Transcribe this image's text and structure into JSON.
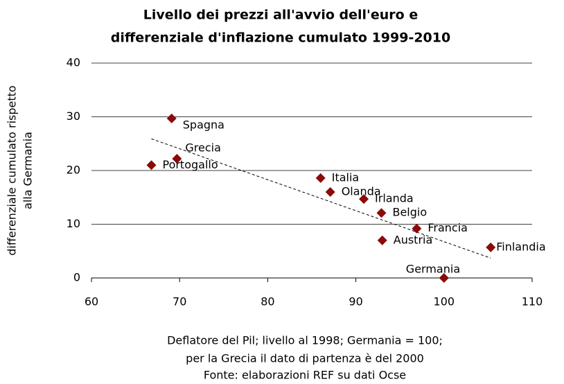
{
  "chart_data": {
    "type": "scatter",
    "title": [
      "Livello dei prezzi all'avvio dell'euro e",
      "differenziale d'inflazione cumulato 1999-2010"
    ],
    "ylabel": [
      "differenziale cumulato rispetto",
      "alla Germania"
    ],
    "caption": [
      "Deflatore del Pil; livello al 1998; Germania = 100;",
      "per la Grecia il dato di partenza è del 2000",
      "Fonte: elaborazioni REF su dati Ocse"
    ],
    "labels": [
      "Spagna",
      "Grecia",
      "Portogallo",
      "Italia",
      "Olanda",
      "Irlanda",
      "Belgio",
      "Francia",
      "Austria",
      "Finlandia",
      "Germania"
    ],
    "x": [
      69.1,
      69.7,
      66.8,
      86.0,
      87.1,
      90.9,
      92.9,
      96.9,
      93.0,
      105.3,
      100
    ],
    "values": [
      29.7,
      22.2,
      21.0,
      18.6,
      16.0,
      14.7,
      12.1,
      9.2,
      7.0,
      5.7,
      0
    ],
    "color": "#8b0a0a",
    "trendline": {
      "x": [
        66.8,
        105.3
      ],
      "y": [
        25.9,
        3.7
      ]
    },
    "xlim": [
      60,
      110
    ],
    "xticks": [
      60,
      70,
      80,
      90,
      100,
      110
    ],
    "ylim": [
      0,
      40
    ],
    "yticks": [
      0,
      10,
      20,
      30,
      40
    ],
    "grid": true
  }
}
